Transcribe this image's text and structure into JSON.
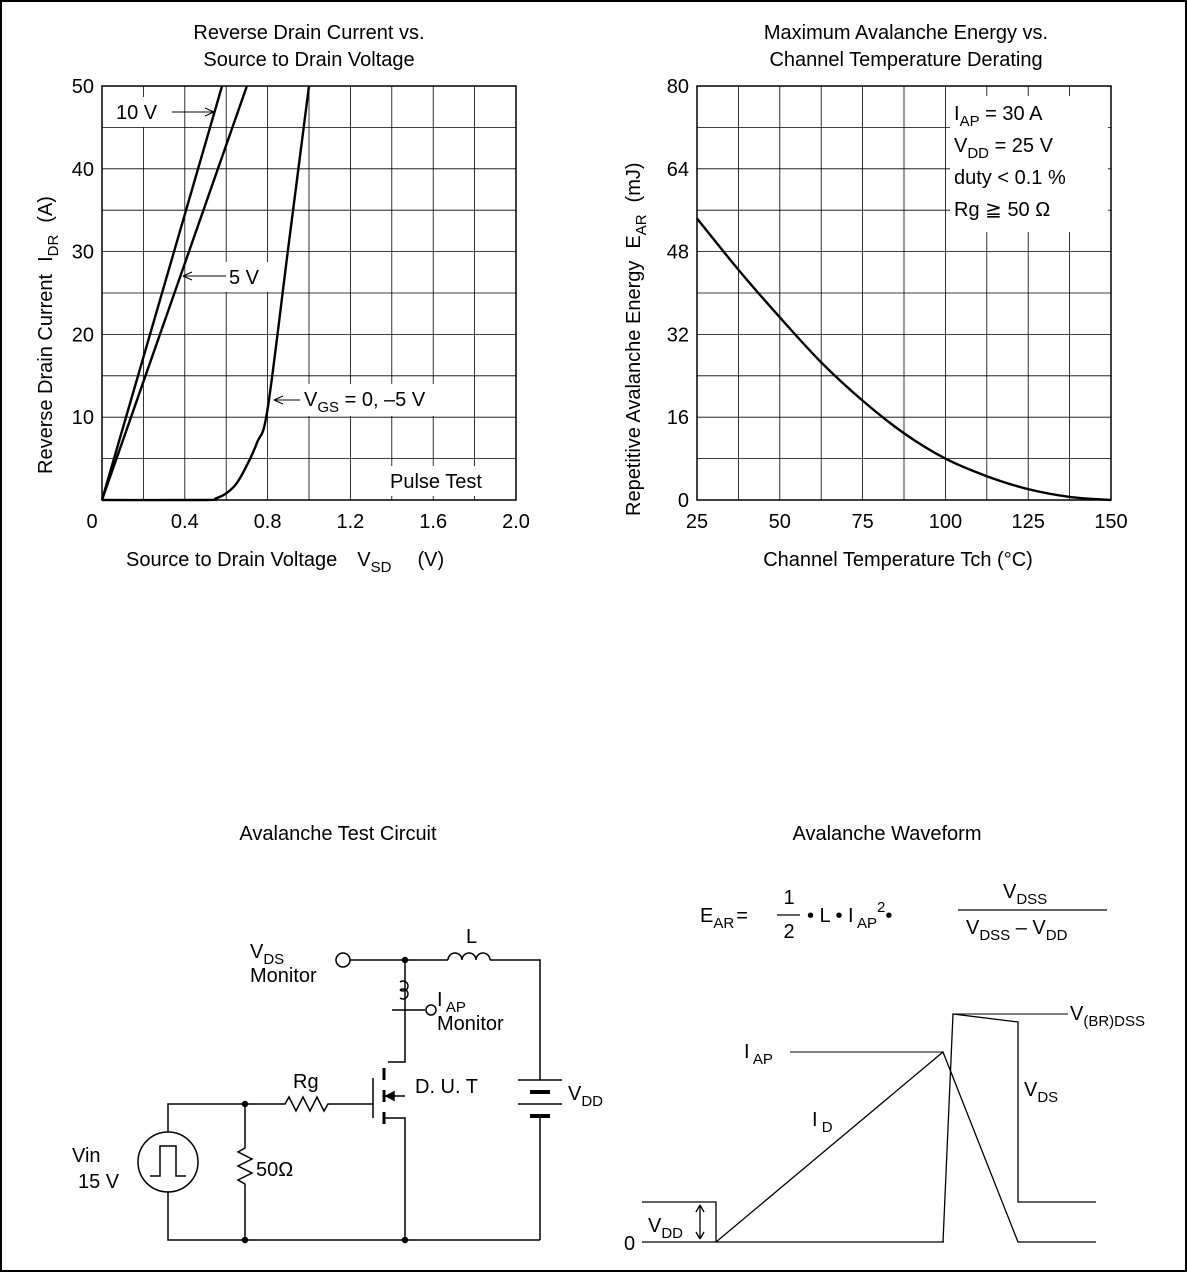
{
  "chart_data": [
    {
      "type": "line",
      "title": "Reverse Drain Current vs. Source to Drain Voltage",
      "title_lines": [
        "Reverse Drain Current vs.",
        "Source to Drain Voltage"
      ],
      "xlabel": "Source to Drain Voltage",
      "xlabel_symbol": "V",
      "xlabel_symbol_sub": "SD",
      "xlabel_unit": "(V)",
      "ylabel": "Reverse Drain Current",
      "ylabel_symbol": "I",
      "ylabel_symbol_sub": "DR",
      "ylabel_unit": "(A)",
      "xlim": [
        0,
        2.0
      ],
      "ylim": [
        0,
        50
      ],
      "grid": true,
      "x_ticks": [
        "0",
        "0.4",
        "0.8",
        "1.2",
        "1.6",
        "2.0"
      ],
      "x_tick_values": [
        0,
        0.4,
        0.8,
        1.2,
        1.6,
        2.0
      ],
      "y_ticks": [
        "10",
        "20",
        "30",
        "40",
        "50"
      ],
      "y_tick_values": [
        10,
        20,
        30,
        40,
        50
      ],
      "annotation": "Pulse Test",
      "series": [
        {
          "name": "10 V",
          "x": [
            0,
            0.58
          ],
          "y": [
            0,
            50
          ]
        },
        {
          "name": "5 V",
          "x": [
            0,
            0.7
          ],
          "y": [
            0,
            50
          ]
        },
        {
          "name": "V_GS = 0, –5 V",
          "x": [
            0,
            0.5,
            0.55,
            0.6,
            0.65,
            0.7,
            0.75,
            0.8,
            0.9,
            1.0
          ],
          "y": [
            0,
            0,
            0.2,
            0.8,
            2.0,
            4.2,
            7.0,
            11.0,
            30.5,
            50
          ]
        }
      ],
      "series_labels": [
        {
          "text": "10 V"
        },
        {
          "text": "5 V"
        },
        {
          "main": "V",
          "sub": "GS",
          "rest": " = 0, –5 V"
        }
      ]
    },
    {
      "type": "line",
      "title": "Maximum Avalanche Energy vs. Channel Temperature Derating",
      "title_lines": [
        "Maximum Avalanche Energy vs.",
        "Channel Temperature Derating"
      ],
      "xlabel": "Channel Temperature Tch (°C)",
      "ylabel": "Repetitive Avalanche Energy",
      "ylabel_symbol": "E",
      "ylabel_symbol_sub": "AR",
      "ylabel_unit": "(mJ)",
      "xlim": [
        25,
        150
      ],
      "ylim": [
        0,
        80
      ],
      "grid": true,
      "x_ticks": [
        "25",
        "50",
        "75",
        "100",
        "125",
        "150"
      ],
      "x_tick_values": [
        25,
        50,
        75,
        100,
        125,
        150
      ],
      "y_ticks": [
        "0",
        "16",
        "32",
        "48",
        "64",
        "80"
      ],
      "y_tick_values": [
        0,
        16,
        32,
        48,
        64,
        80
      ],
      "conditions": [
        {
          "main": "I",
          "sub": "AP",
          "rest": " = 30 A"
        },
        {
          "main": "V",
          "sub": "DD",
          "rest": " = 25 V"
        },
        {
          "main": "duty < 0.1 %",
          "sub": "",
          "rest": ""
        },
        {
          "main": "Rg ≧ 50 Ω",
          "sub": "",
          "rest": ""
        }
      ],
      "series": [
        {
          "x": [
            25,
            37.5,
            50,
            62.5,
            75,
            87.5,
            100,
            112.5,
            125,
            137.5,
            150
          ],
          "y": [
            54.4,
            44.5,
            35.3,
            26.6,
            19.2,
            12.9,
            8.0,
            4.6,
            2.1,
            0.6,
            0
          ]
        }
      ]
    }
  ],
  "circuit": {
    "title": "Avalanche Test Circuit",
    "vds_monitor": {
      "main": "V",
      "sub": "DS",
      "line2": "Monitor"
    },
    "inductor_label": "L",
    "iap_monitor": {
      "main": "I",
      "sub": " AP",
      "line2": "Monitor"
    },
    "rg_label": "Rg",
    "dut_label": "D. U. T",
    "vdd_label": {
      "main": "V",
      "sub": "DD"
    },
    "vin_label": "Vin",
    "vin_value": "15 V",
    "r50_label": "50Ω"
  },
  "waveform": {
    "title": "Avalanche Waveform",
    "formula": {
      "lhs_main": "E",
      "lhs_sub": "AR",
      "eq": "=",
      "frac_num": "1",
      "frac_den": "2",
      "mid": "• L • I",
      "mid_sub": " AP",
      "mid_sup": "2",
      "dot": "•",
      "num_main": "V",
      "num_sub": "DSS",
      "den_main": "V",
      "den_sub": "DSS",
      "den_rest": " – V",
      "den_sub2": "DD"
    },
    "vbr_label": {
      "main": "V",
      "sub": "(BR)DSS"
    },
    "iap_label": {
      "main": "I",
      "sub": " AP"
    },
    "vds_label": {
      "main": "V",
      "sub": "DS"
    },
    "id_label": {
      "main": "I",
      "sub": " D"
    },
    "vdd_label": {
      "main": "V",
      "sub": "DD"
    },
    "zero_label": "0"
  }
}
